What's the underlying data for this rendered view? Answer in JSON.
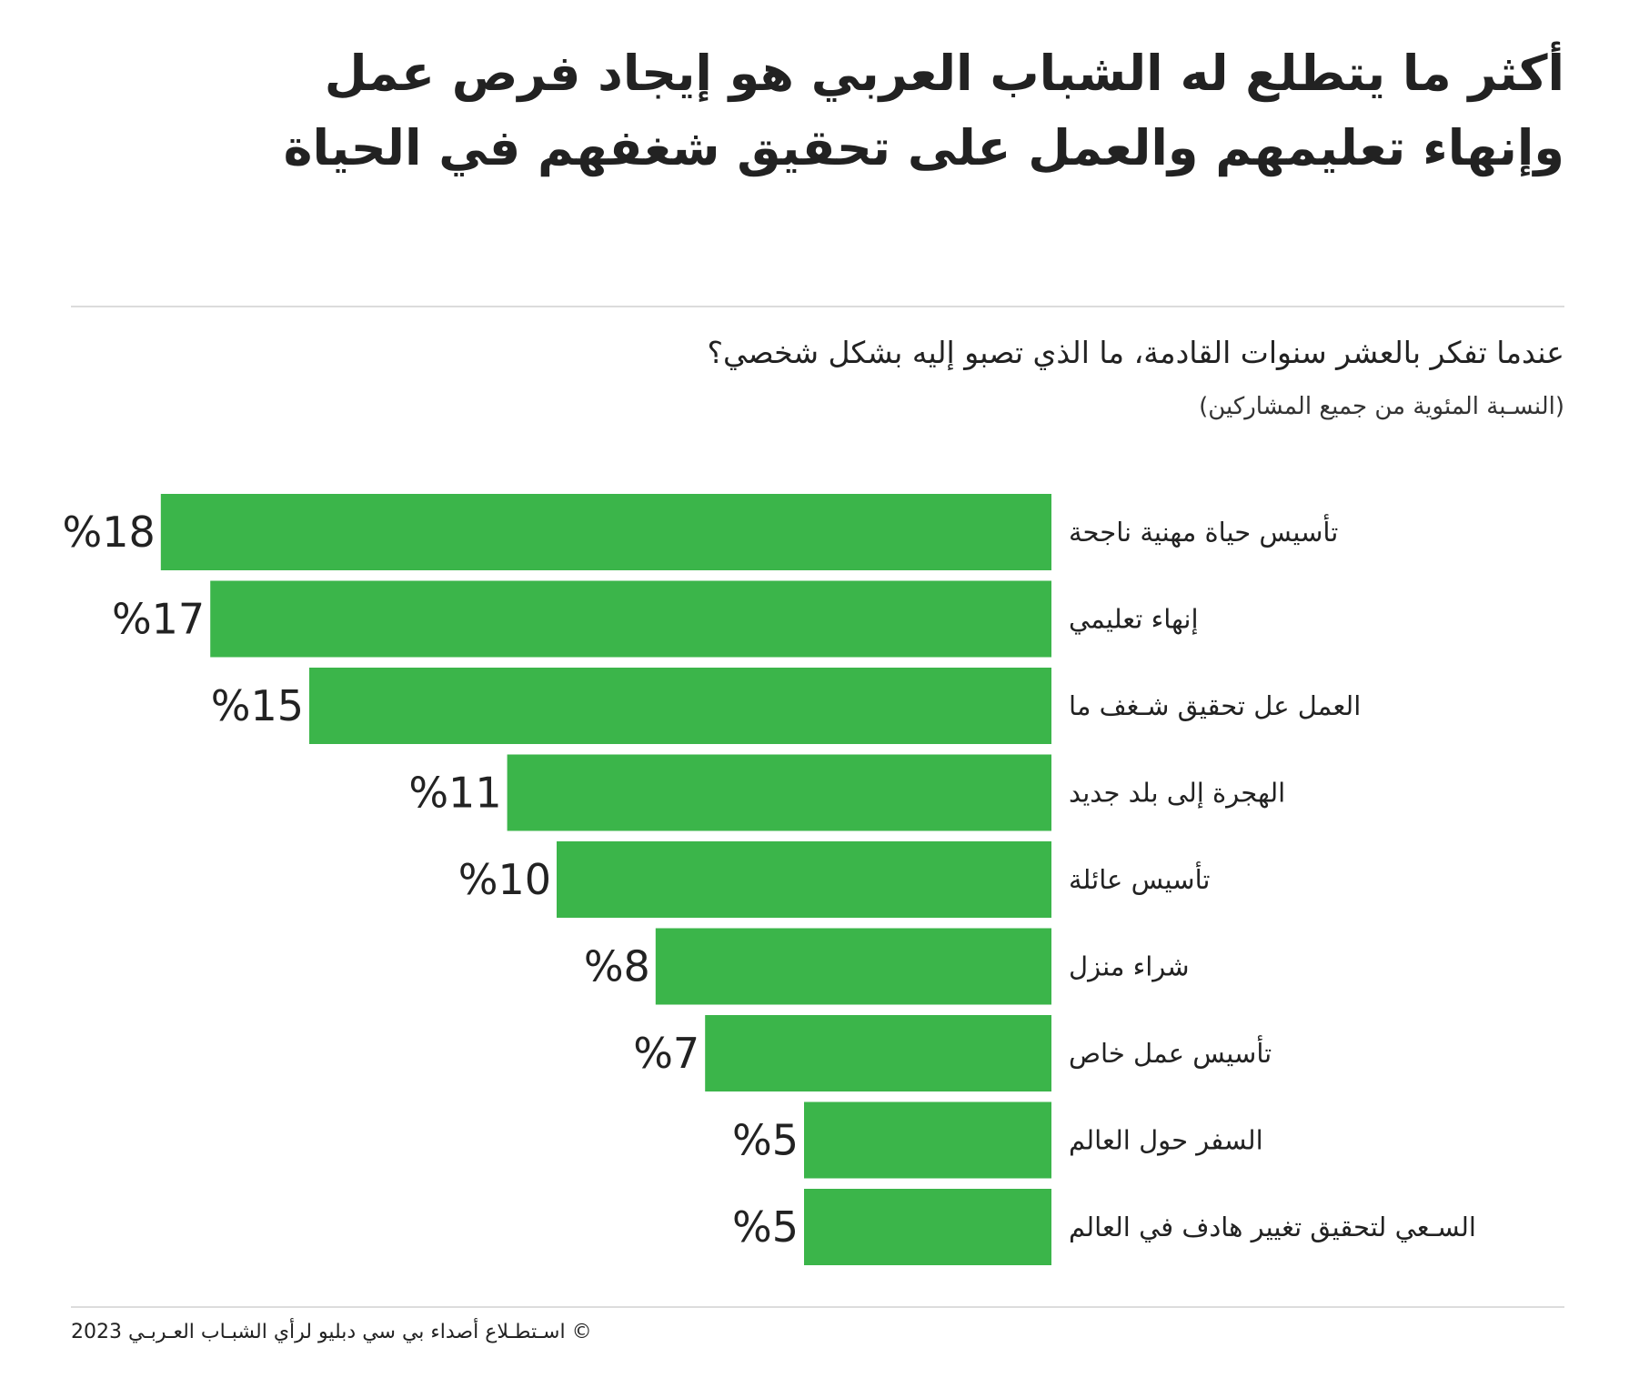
{
  "title": "أكثر ما يتطلع له الشباب العربي هو إيجاد فرص عمل وإنهاء تعليمهم والعمل على تحقيق شغفهم في الحياة",
  "question": "عندما تفكر بالعشر سنوات القادمة، ما الذي تصبو إليه بشكل شخصي؟",
  "note": "(النسـبة المئوية من جميع المشاركين)",
  "footer": "©  اسـتطـلاع أصداء بي سي دبليو لرأي الشبـاب العـربـي 2023",
  "colors": {
    "bar": "#3bb54a",
    "text": "#222222"
  },
  "chart_data": {
    "type": "bar",
    "orientation": "horizontal",
    "categories": [
      "تأسيس حياة مهنية ناجحة",
      "إنهاء تعليمي",
      "العمل عل تحقيق شـغف ما",
      "الهجرة إلى بلد جديد",
      "تأسيس عائلة",
      "شراء منزل",
      "تأسيس عمل خاص",
      "السفر حول العالم",
      "السـعي لتحقيق تغيير هادف في العالم"
    ],
    "values": [
      18,
      17,
      15,
      11,
      10,
      8,
      7,
      5,
      5
    ],
    "labels": [
      "%18",
      "%17",
      "%15",
      "%11",
      "%10",
      "%8",
      "%7",
      "%5",
      "%5"
    ],
    "unit": "%",
    "grid": false
  }
}
